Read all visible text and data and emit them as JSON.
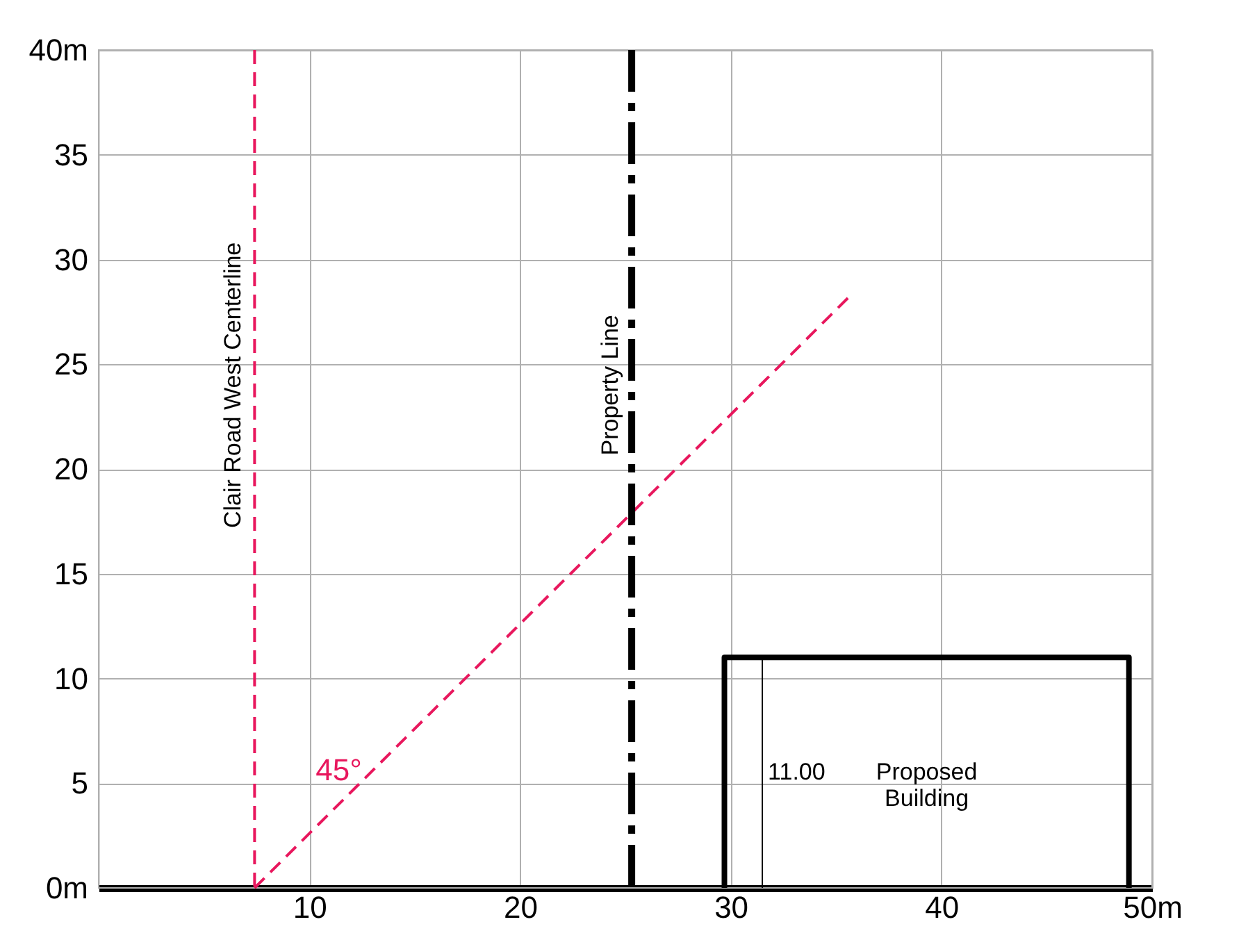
{
  "chart_data": {
    "type": "line",
    "series": [
      {
        "type": "line",
        "x": [
          7.4,
          35.8
        ],
        "values": [
          0,
          28.4
        ],
        "color": "#e8175d",
        "line_style": "dashed"
      },
      {
        "type": "line",
        "x": [
          29.7,
          29.7,
          48.9,
          48.9
        ],
        "values": [
          0,
          11,
          11,
          0
        ],
        "color": "#000000",
        "line_style": "solid"
      },
      {
        "type": "line",
        "x": [
          31.5,
          31.5
        ],
        "values": [
          0,
          11
        ],
        "color": "#000000",
        "line_style": "solid"
      }
    ],
    "xlim": [
      0,
      50
    ],
    "ylim": [
      0,
      40
    ],
    "xticks": [
      10,
      20,
      30,
      40,
      {
        "value": 50,
        "label": "50m"
      }
    ],
    "yticks": [
      {
        "value": 0,
        "label": "0m"
      },
      5,
      10,
      15,
      20,
      25,
      30,
      35,
      {
        "value": 40,
        "label": "40m"
      }
    ],
    "grid": true,
    "ref_lines": [
      {
        "axis": "x",
        "value": 7.4,
        "label": "Clair Road West Centerline",
        "color": "#e8175d",
        "line_style": "dashed"
      },
      {
        "axis": "x",
        "value": 25.3,
        "label": "Property Line",
        "color": "#000000",
        "line_style": "dashed"
      }
    ],
    "annotations": [
      "45°",
      {
        "text": "11.00",
        "x": 31.5,
        "y": 5.5
      },
      "Proposed Building"
    ]
  }
}
